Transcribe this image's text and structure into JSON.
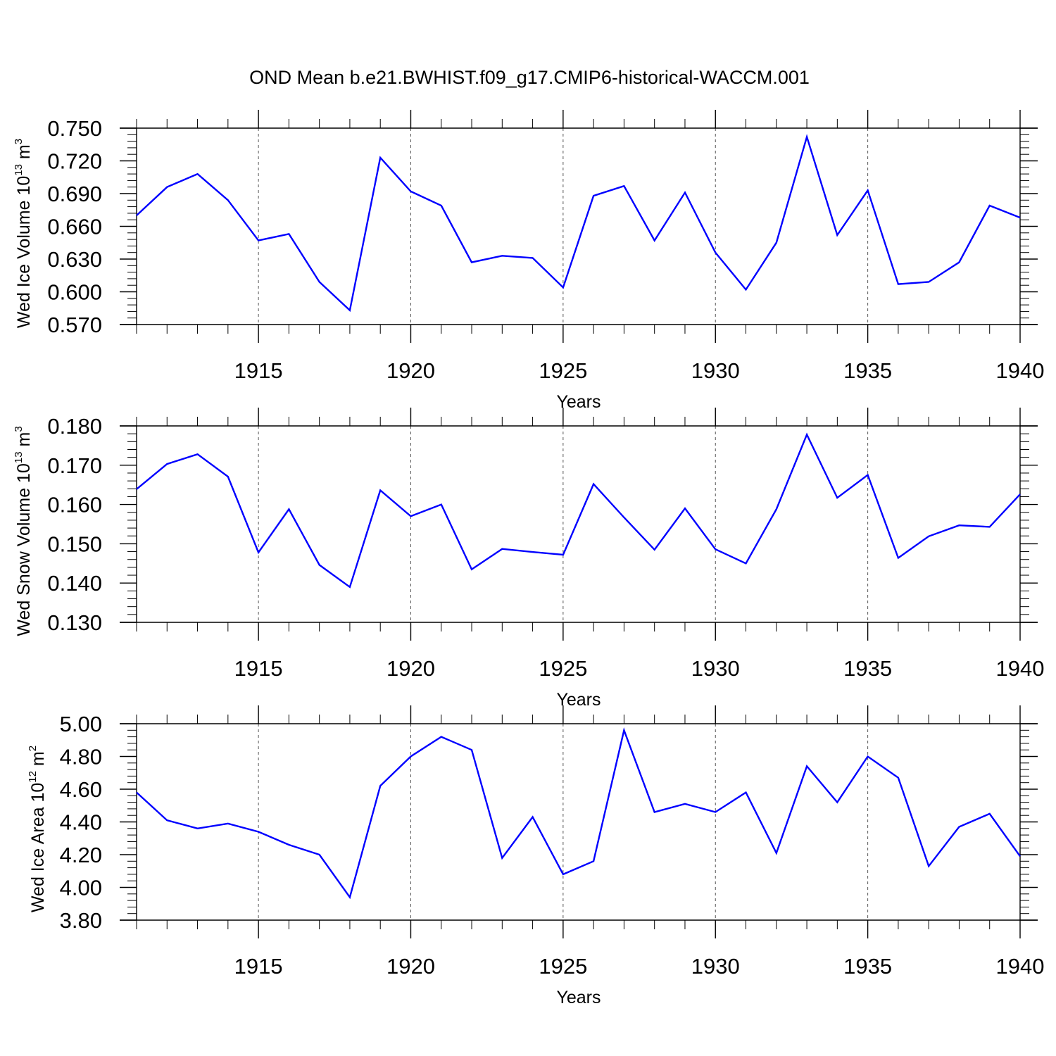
{
  "title": "OND Mean b.e21.BWHIST.f09_g17.CMIP6-historical-WACCM.001",
  "colors": {
    "line": "#0000ff",
    "axis": "#000000",
    "grid": "#555555"
  },
  "chart_data": [
    {
      "type": "line",
      "ylabel": {
        "text": "Wed Ice Volume 10",
        "sup1": "13",
        "mid": " m",
        "sup2": "3"
      },
      "xlabel": "Years",
      "xlim": [
        1911,
        1940
      ],
      "ylim": [
        0.57,
        0.75
      ],
      "yticks": [
        "0.570",
        "0.600",
        "0.630",
        "0.660",
        "0.690",
        "0.720",
        "0.750"
      ],
      "xticks": [
        "1915",
        "1920",
        "1925",
        "1930",
        "1935",
        "1940"
      ],
      "x": [
        1911,
        1912,
        1913,
        1914,
        1915,
        1916,
        1917,
        1918,
        1919,
        1920,
        1921,
        1922,
        1923,
        1924,
        1925,
        1926,
        1927,
        1928,
        1929,
        1930,
        1931,
        1932,
        1933,
        1934,
        1935,
        1936,
        1937,
        1938,
        1939,
        1940
      ],
      "series": [
        {
          "values": [
            0.67,
            0.696,
            0.708,
            0.684,
            0.647,
            0.653,
            0.609,
            0.583,
            0.723,
            0.692,
            0.679,
            0.627,
            0.633,
            0.631,
            0.604,
            0.688,
            0.697,
            0.647,
            0.691,
            0.636,
            0.602,
            0.645,
            0.742,
            0.652,
            0.693,
            0.607,
            0.609,
            0.627,
            0.679,
            0.668
          ]
        }
      ]
    },
    {
      "type": "line",
      "ylabel": {
        "text": "Wed Snow Volume 10",
        "sup1": "13",
        "mid": " m",
        "sup2": "3"
      },
      "xlabel": "Years",
      "xlim": [
        1911,
        1940
      ],
      "ylim": [
        0.13,
        0.18
      ],
      "yticks": [
        "0.130",
        "0.140",
        "0.150",
        "0.160",
        "0.170",
        "0.180"
      ],
      "xticks": [
        "1915",
        "1920",
        "1925",
        "1930",
        "1935",
        "1940"
      ],
      "x": [
        1911,
        1912,
        1913,
        1914,
        1915,
        1916,
        1917,
        1918,
        1919,
        1920,
        1921,
        1922,
        1923,
        1924,
        1925,
        1926,
        1927,
        1928,
        1929,
        1930,
        1931,
        1932,
        1933,
        1934,
        1935,
        1936,
        1937,
        1938,
        1939,
        1940
      ],
      "series": [
        {
          "values": [
            0.1639,
            0.1703,
            0.1728,
            0.1671,
            0.1478,
            0.1588,
            0.1446,
            0.139,
            0.1636,
            0.157,
            0.16,
            0.1435,
            0.1487,
            0.1479,
            0.1472,
            0.1652,
            0.1567,
            0.1485,
            0.159,
            0.1486,
            0.145,
            0.1588,
            0.1778,
            0.1617,
            0.1675,
            0.1464,
            0.1519,
            0.1547,
            0.1543,
            0.1626
          ]
        }
      ]
    },
    {
      "type": "line",
      "ylabel": {
        "text": "Wed Ice Area 10",
        "sup1": "12",
        "mid": " m",
        "sup2": "2"
      },
      "xlabel": "Years",
      "xlim": [
        1911,
        1940
      ],
      "ylim": [
        3.8,
        5.0
      ],
      "yticks": [
        "3.80",
        "4.00",
        "4.20",
        "4.40",
        "4.60",
        "4.80",
        "5.00"
      ],
      "xticks": [
        "1915",
        "1920",
        "1925",
        "1930",
        "1935",
        "1940"
      ],
      "x": [
        1911,
        1912,
        1913,
        1914,
        1915,
        1916,
        1917,
        1918,
        1919,
        1920,
        1921,
        1922,
        1923,
        1924,
        1925,
        1926,
        1927,
        1928,
        1929,
        1930,
        1931,
        1932,
        1933,
        1934,
        1935,
        1936,
        1937,
        1938,
        1939,
        1940
      ],
      "series": [
        {
          "values": [
            4.58,
            4.41,
            4.36,
            4.39,
            4.34,
            4.26,
            4.2,
            3.94,
            4.62,
            4.8,
            4.92,
            4.84,
            4.18,
            4.43,
            4.08,
            4.16,
            4.96,
            4.46,
            4.51,
            4.46,
            4.58,
            4.21,
            4.74,
            4.52,
            4.8,
            4.67,
            4.13,
            4.37,
            4.45,
            4.19
          ]
        }
      ]
    }
  ]
}
